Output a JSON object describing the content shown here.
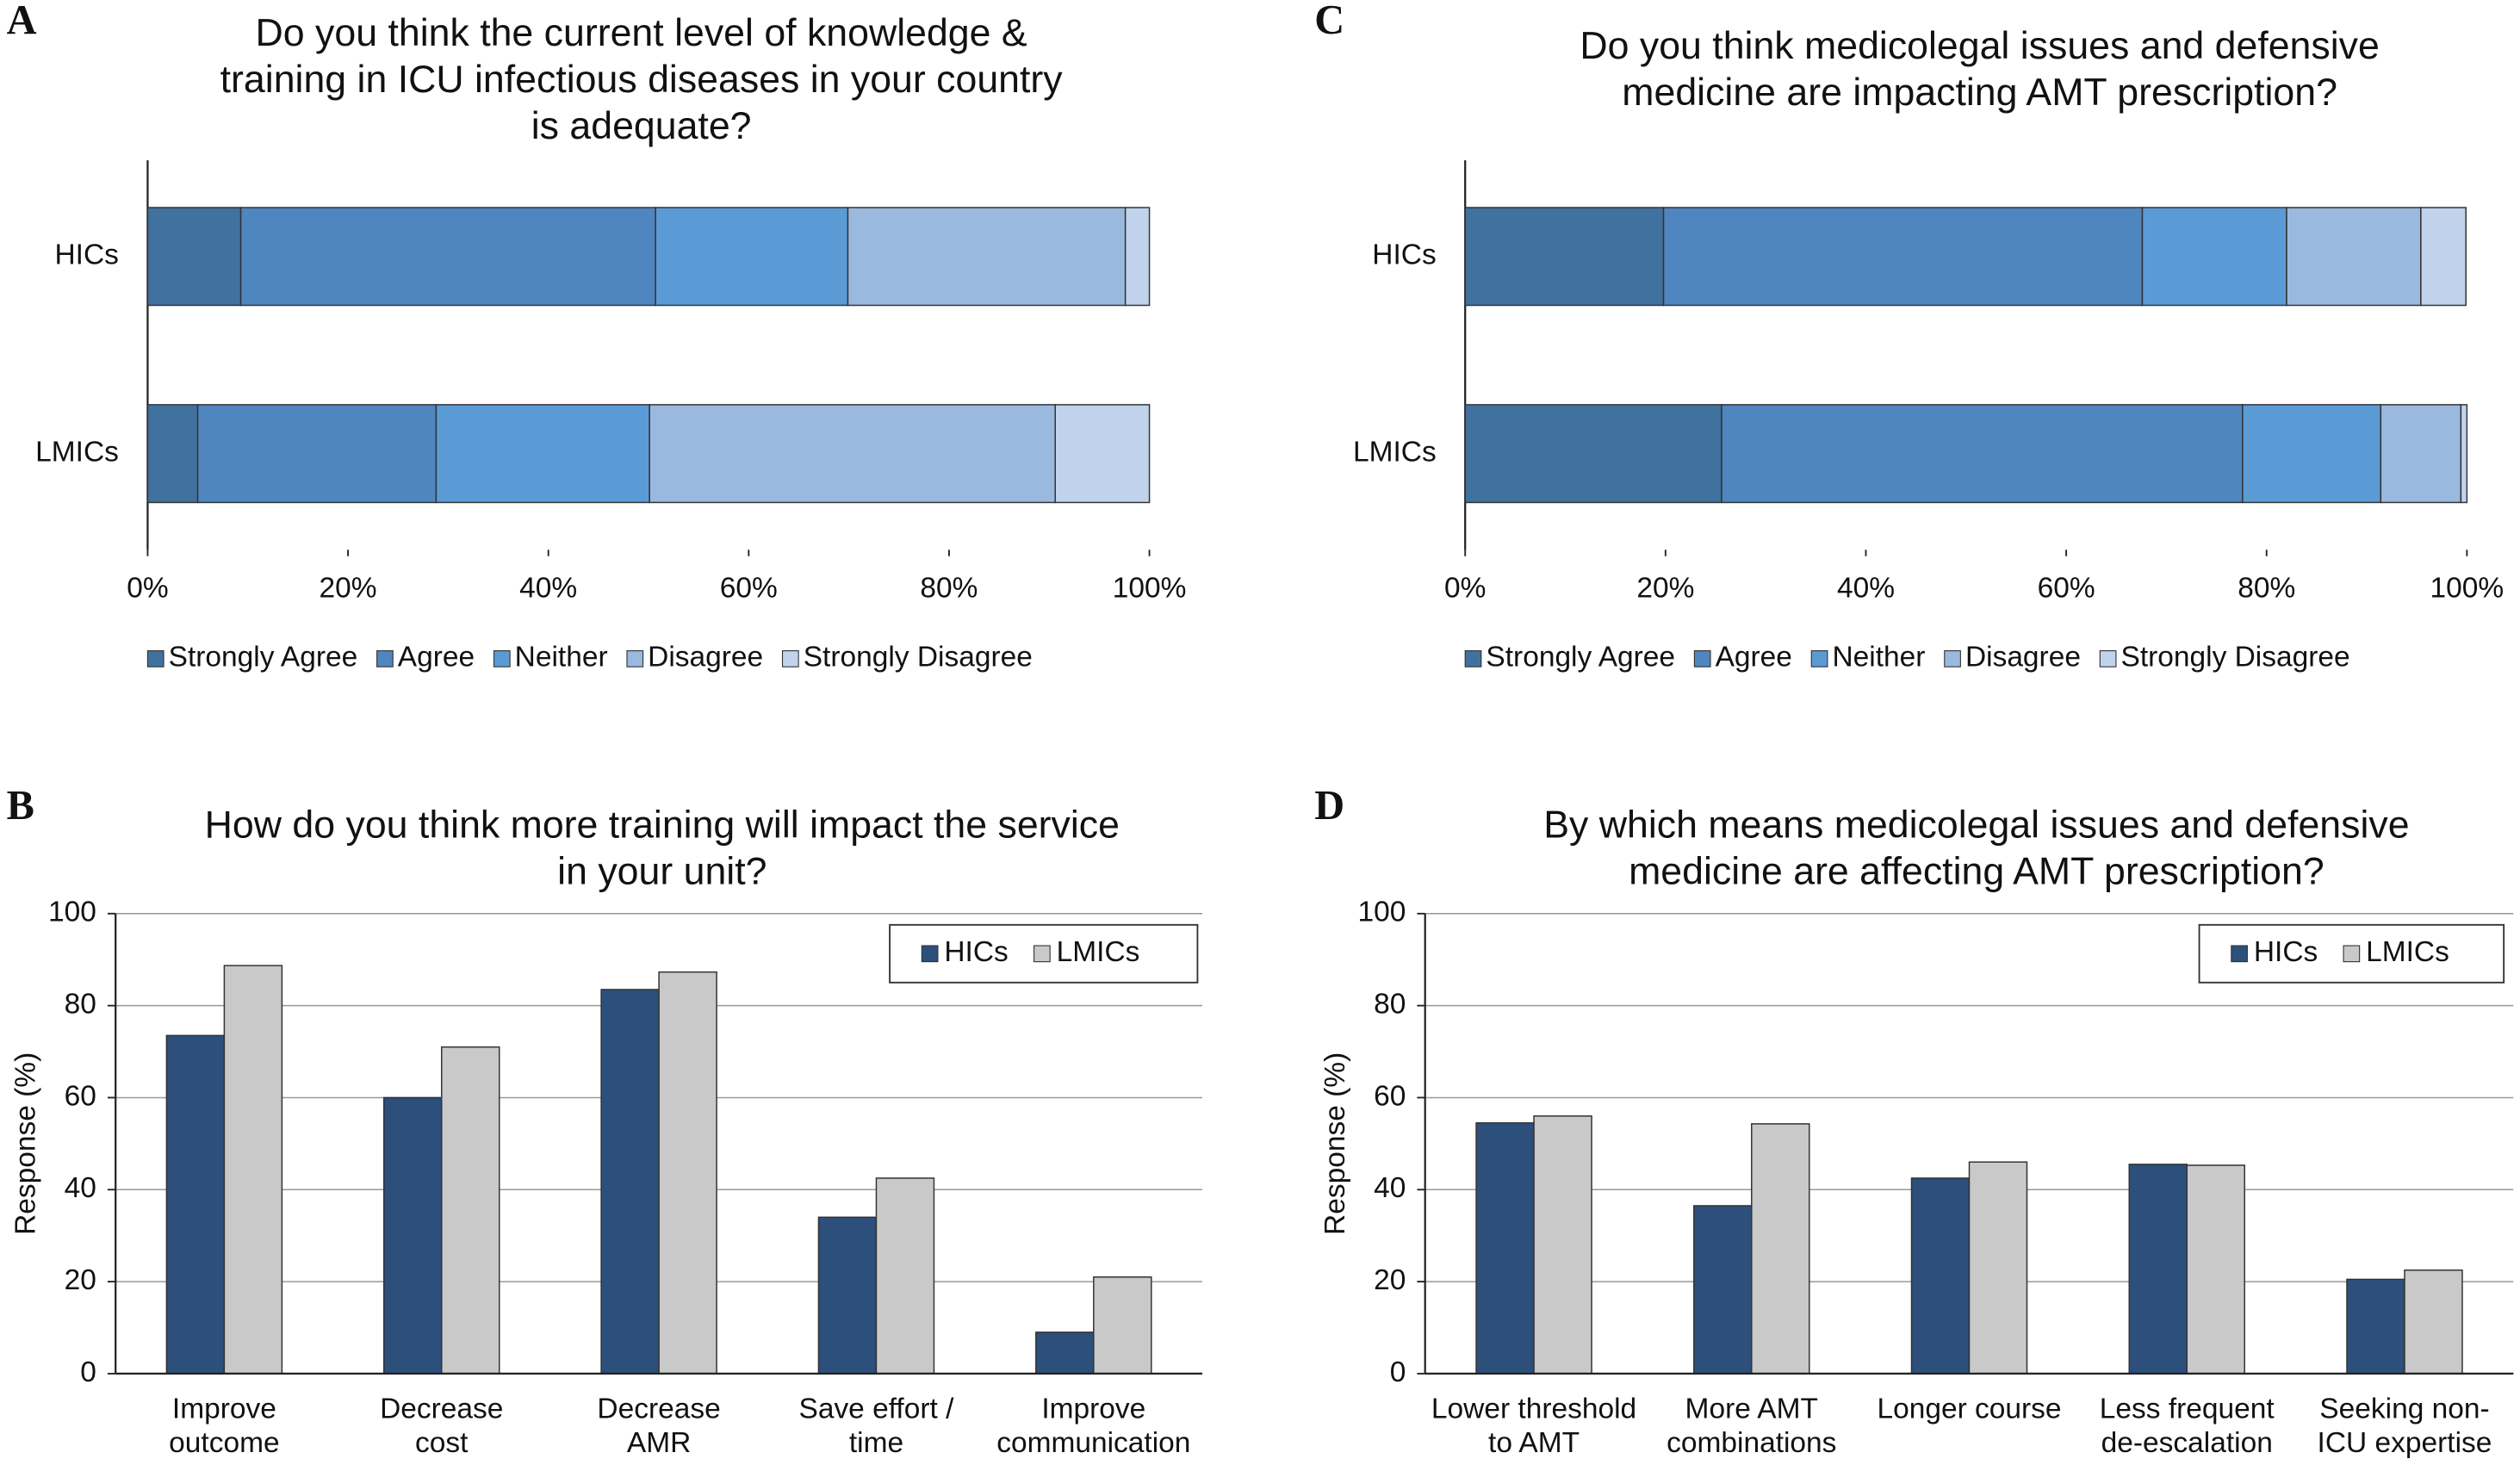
{
  "chart_data": [
    {
      "type": "stacked_bar_horizontal",
      "panel": "A",
      "title": "Do you think the current level of knowledge &\ntraining in ICU infectious diseases in your country\nis adequate?",
      "categories": [
        "HICs",
        "LMICs"
      ],
      "series": [
        {
          "name": "Strongly Agree",
          "color": "#41729f",
          "values": [
            9.3,
            5.0
          ]
        },
        {
          "name": "Agree",
          "color": "#4f86bf",
          "values": [
            41.4,
            23.8
          ]
        },
        {
          "name": "Neither",
          "color": "#5b9bd5",
          "values": [
            19.2,
            21.3
          ]
        },
        {
          "name": "Disagree",
          "color": "#9ab9df",
          "values": [
            27.7,
            40.5
          ]
        },
        {
          "name": "Strongly Disagree",
          "color": "#c1d3ec",
          "values": [
            2.4,
            9.4
          ]
        }
      ],
      "xlim": [
        0,
        100
      ],
      "xticks": [
        {
          "value": 0,
          "label": "0%"
        },
        {
          "value": 20,
          "label": "20%"
        },
        {
          "value": 40,
          "label": "40%"
        },
        {
          "value": 60,
          "label": "60%"
        },
        {
          "value": 80,
          "label": "80%"
        },
        {
          "value": 100,
          "label": "100%"
        }
      ]
    },
    {
      "type": "bar",
      "panel": "B",
      "title": "How do you think more training will impact the service\nin your unit?",
      "y_label": "Response (%)",
      "categories": [
        "Improve\noutcome",
        "Decrease\ncost",
        "Decrease\nAMR",
        "Save effort /\ntime",
        "Improve\ncommunication"
      ],
      "series": [
        {
          "name": "HICs",
          "color": "#2c4f7c",
          "values": [
            73.5,
            60,
            83.5,
            34,
            9
          ]
        },
        {
          "name": "LMICs",
          "color": "#c9c9c9",
          "values": [
            88.7,
            71,
            87.3,
            42.5,
            21
          ]
        }
      ],
      "ylim": [
        0,
        100
      ],
      "yticks": [
        0,
        20,
        40,
        60,
        80,
        100
      ],
      "grid": true
    },
    {
      "type": "stacked_bar_horizontal",
      "panel": "C",
      "title": "Do you think medicolegal issues and defensive\nmedicine are impacting AMT prescription?",
      "categories": [
        "HICs",
        "LMICs"
      ],
      "series": [
        {
          "name": "Strongly Agree",
          "color": "#41729f",
          "values": [
            19.8,
            25.6
          ]
        },
        {
          "name": "Agree",
          "color": "#4f86bf",
          "values": [
            47.8,
            52
          ]
        },
        {
          "name": "Neither",
          "color": "#5b9bd5",
          "values": [
            14.4,
            13.8
          ]
        },
        {
          "name": "Disagree",
          "color": "#9ab9df",
          "values": [
            13.4,
            8
          ]
        },
        {
          "name": "Strongly Disagree",
          "color": "#c1d3ec",
          "values": [
            4.5,
            0.6
          ]
        }
      ],
      "xlim": [
        0,
        100
      ],
      "xticks": [
        {
          "value": 0,
          "label": "0%"
        },
        {
          "value": 20,
          "label": "20%"
        },
        {
          "value": 40,
          "label": "40%"
        },
        {
          "value": 60,
          "label": "60%"
        },
        {
          "value": 80,
          "label": "80%"
        },
        {
          "value": 100,
          "label": "100%"
        }
      ]
    },
    {
      "type": "bar",
      "panel": "D",
      "title": "By which means medicolegal issues and defensive\nmedicine are affecting AMT prescription?",
      "y_label": "Response (%)",
      "categories": [
        "Lower threshold\nto AMT",
        "More AMT\ncombinations",
        "Longer course",
        "Less frequent\nde-escalation",
        "Seeking non-\nICU expertise"
      ],
      "series": [
        {
          "name": "HICs",
          "color": "#2c4f7c",
          "values": [
            54.5,
            36.5,
            42.5,
            45.5,
            20.5
          ]
        },
        {
          "name": "LMICs",
          "color": "#c9c9c9",
          "values": [
            56,
            54.3,
            46,
            45.3,
            22.5
          ]
        }
      ],
      "ylim": [
        0,
        100
      ],
      "yticks": [
        0,
        20,
        40,
        60,
        80,
        100
      ],
      "grid": true
    }
  ]
}
